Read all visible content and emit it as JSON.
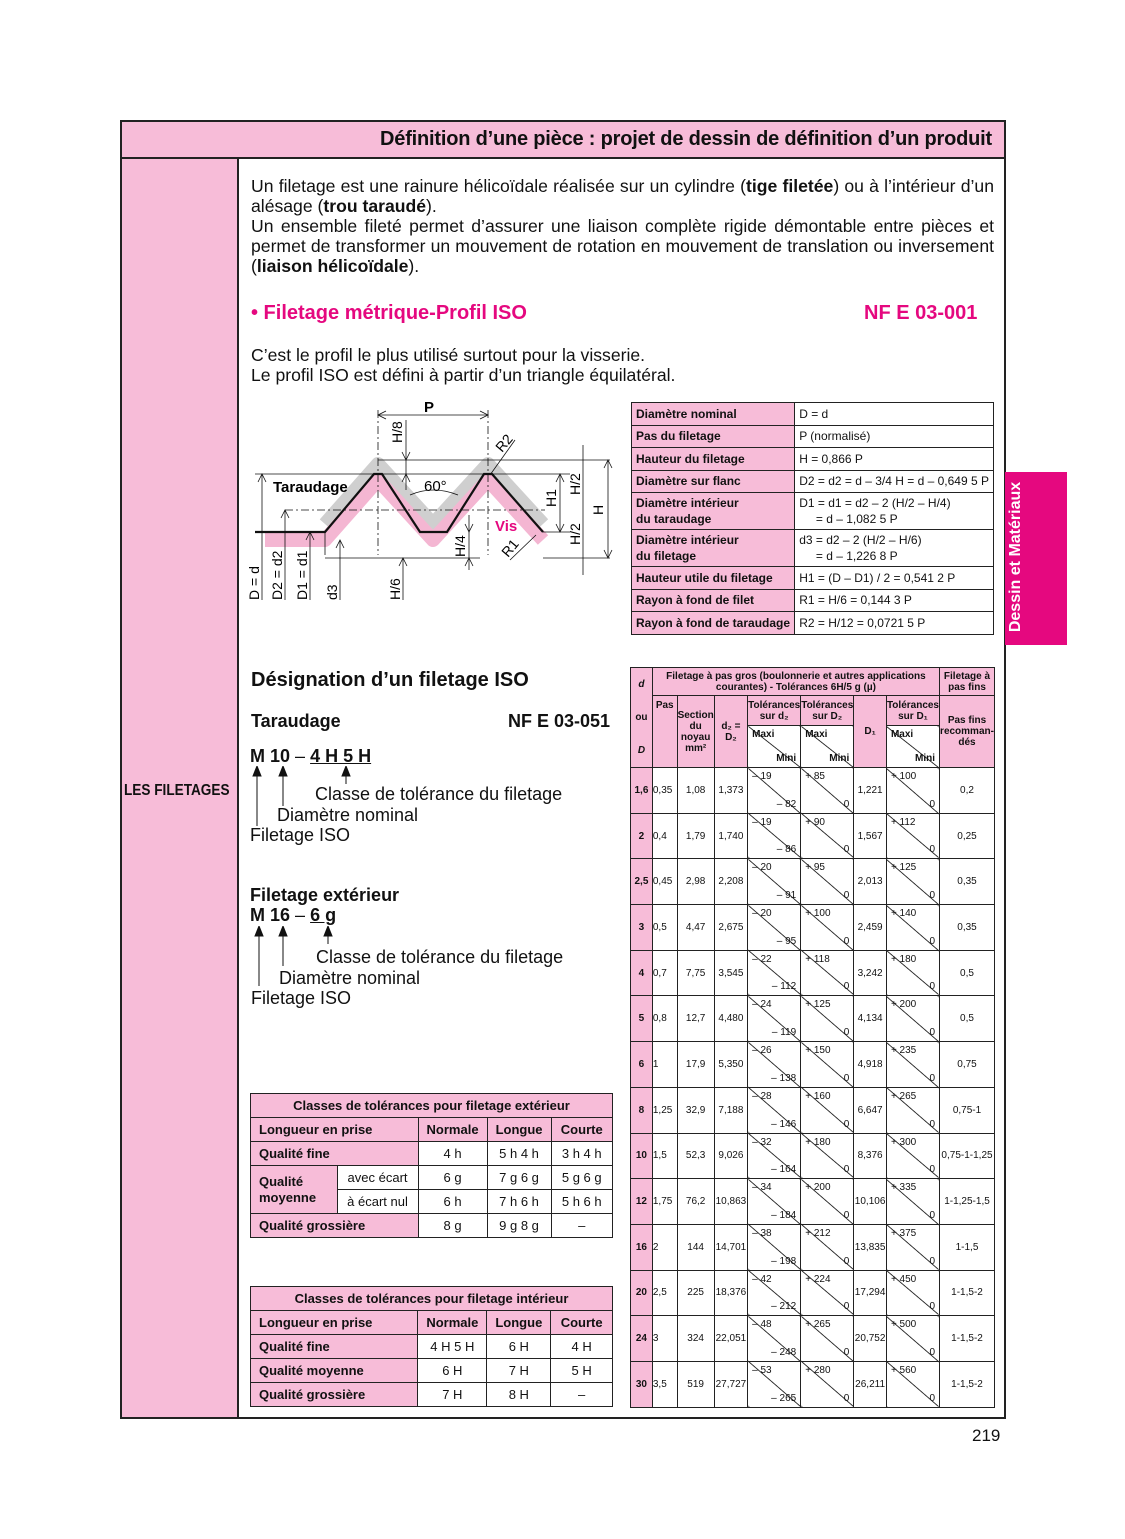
{
  "title": "Définition d’une pièce : projet de dessin de définition d’un produit",
  "left_label": "LES FILETAGES",
  "side_tab": "Dessin et Matériaux",
  "page_number": "219",
  "intro": {
    "p1": [
      "Un filetage est une rainure hélicoïdale réalisée sur un cylindre (",
      "tige filetée",
      ") ou à l’intérieur d’un alésage (",
      "trou taraudé",
      ")."
    ],
    "p2": [
      "Un ensemble fileté permet d’assurer une liaison complète rigide démontable entre pièces et permet de transformer un mouvement de rotation en mouvement de translation ou inversement (",
      "liaison hélicoïdale",
      ")."
    ]
  },
  "section": {
    "title": "• Filetage métrique-Profil ISO",
    "norm": "NF E 03-001",
    "line1": "C’est le profil le plus utilisé surtout pour la visserie.",
    "line2": "Le profil ISO est défini à partir d’un triangle équilatéral."
  },
  "diagram": {
    "P": "P",
    "H8": "H/8",
    "R2": "R2",
    "taraudage": "Taraudage",
    "angle": "60°",
    "vis": "Vis",
    "H1": "H1",
    "H2a": "H/2",
    "H2b": "H/2",
    "H": "H",
    "H4": "H/4",
    "R1": "R1",
    "H6": "H/6",
    "Dd": "D = d",
    "D2": "D2 = d2",
    "D1": "D1 = d1",
    "d3": "d3",
    "colors": {
      "gray": "#cfcfcf",
      "pink": "#f4b6d2",
      "vis": "#e5087f"
    }
  },
  "spec_table": [
    [
      "Diamètre nominal",
      "D = d"
    ],
    [
      "Pas du filetage",
      "P (normalisé)"
    ],
    [
      "Hauteur du filetage",
      "H = 0,866 P"
    ],
    [
      "Diamètre sur flanc",
      "D2 = d2 = d – 3/4 H = d – 0,649 5 P"
    ],
    [
      "Diamètre intérieur\ndu taraudage",
      "D1 = d1 = d2 – 2 (H/2 – H/4)\n     = d – 1,082 5 P"
    ],
    [
      "Diamètre intérieur\ndu filetage",
      "d3 = d2 – 2 (H/2 – H/6)\n     = d – 1,226 8 P"
    ],
    [
      "Hauteur utile du filetage",
      "H1 = (D – D1) / 2 = 0,541 2 P"
    ],
    [
      "Rayon à fond de filet",
      "R1 = H/6 = 0,144 3 P"
    ],
    [
      "Rayon à fond de taraudage",
      "R2 = H/12 = 0,0721 5 P"
    ]
  ],
  "designation": {
    "title": "Désignation d’un filetage ISO",
    "taraudage": "Taraudage",
    "norm": "NF E 03-051",
    "code_a": "M 10",
    "dash": "–",
    "code_b": "4 H 5 H",
    "l1": "Classe de tolérance du filetage",
    "l2": "Diamètre nominal",
    "l3": "Filetage ISO",
    "ext_title": "Filetage extérieur",
    "code2_a": "M 16",
    "code2_b": "6 g"
  },
  "ext_table": {
    "title": "Classes de tolérances pour filetage extérieur",
    "header": [
      "Longueur en prise",
      "Normale",
      "Longue",
      "Courte"
    ],
    "fine": [
      "Qualité fine",
      "4 h",
      "5 h  4 h",
      "3 h  4 h"
    ],
    "moy_label": "Qualité moyenne",
    "moy1": [
      "avec écart",
      "6 g",
      "7 g  6 g",
      "5 g  6 g"
    ],
    "moy2": [
      "à écart nul",
      "6 h",
      "7 h  6 h",
      "5 h  6 h"
    ],
    "gros": [
      "Qualité grossière",
      "8 g",
      "9 g  8 g",
      "–"
    ]
  },
  "int_table": {
    "title": "Classes de tolérances pour filetage intérieur",
    "header": [
      "Longueur en prise",
      "Normale",
      "Longue",
      "Courte"
    ],
    "rows": [
      [
        "Qualité fine",
        "4 H 5 H",
        "6 H",
        "4 H"
      ],
      [
        "Qualité moyenne",
        "6 H",
        "7 H",
        "5 H"
      ],
      [
        "Qualité grossière",
        "7 H",
        "8 H",
        "–"
      ]
    ]
  },
  "big_table": {
    "h_d": "d",
    "h_ou": "ou",
    "h_D": "D",
    "h_group": "Filetage à pas gros (boulonnerie et autres applications courantes) - Tolérances 6H/5 g (µ)",
    "h_fins": "Filetage à pas fins",
    "h_pas": "Pas",
    "h_section": "Section du noyau mm²",
    "h_d2": "d₂ = D₂",
    "h_tol_d2": "Tolérances sur d₂",
    "h_tol_D2": "Tolérances sur D₂",
    "h_D1": "D₁",
    "h_tol_D1": "Tolérances sur D₁",
    "h_pasfins": "Pas fins recomman-dés",
    "maxi": "Maxi",
    "mini": "Mini",
    "rows": [
      [
        "1,6",
        "0,35",
        "1,08",
        "1,373",
        "– 19",
        "– 82",
        "+ 85",
        "0",
        "1,221",
        "+ 100",
        "0",
        "0,2"
      ],
      [
        "2",
        "0,4",
        "1,79",
        "1,740",
        "– 19",
        "– 86",
        "+ 90",
        "0",
        "1,567",
        "+ 112",
        "0",
        "0,25"
      ],
      [
        "2,5",
        "0,45",
        "2,98",
        "2,208",
        "– 20",
        "– 91",
        "+ 95",
        "0",
        "2,013",
        "+ 125",
        "0",
        "0,35"
      ],
      [
        "3",
        "0,5",
        "4,47",
        "2,675",
        "– 20",
        "– 95",
        "+ 100",
        "0",
        "2,459",
        "+ 140",
        "0",
        "0,35"
      ],
      [
        "4",
        "0,7",
        "7,75",
        "3,545",
        "– 22",
        "– 112",
        "+ 118",
        "0",
        "3,242",
        "+ 180",
        "0",
        "0,5"
      ],
      [
        "5",
        "0,8",
        "12,7",
        "4,480",
        "– 24",
        "– 119",
        "+ 125",
        "0",
        "4,134",
        "+ 200",
        "0",
        "0,5"
      ],
      [
        "6",
        "1",
        "17,9",
        "5,350",
        "– 26",
        "– 138",
        "+ 150",
        "0",
        "4,918",
        "+ 235",
        "0",
        "0,75"
      ],
      [
        "8",
        "1,25",
        "32,9",
        "7,188",
        "– 28",
        "– 146",
        "+ 160",
        "0",
        "6,647",
        "+ 265",
        "0",
        "0,75-1"
      ],
      [
        "10",
        "1,5",
        "52,3",
        "9,026",
        "– 32",
        "– 164",
        "+ 180",
        "0",
        "8,376",
        "+ 300",
        "0",
        "0,75-1-1,25"
      ],
      [
        "12",
        "1,75",
        "76,2",
        "10,863",
        "– 34",
        "– 184",
        "+ 200",
        "0",
        "10,106",
        "+ 335",
        "0",
        "1-1,25-1,5"
      ],
      [
        "16",
        "2",
        "144",
        "14,701",
        "– 38",
        "– 198",
        "+ 212",
        "0",
        "13,835",
        "+ 375",
        "0",
        "1-1,5"
      ],
      [
        "20",
        "2,5",
        "225",
        "18,376",
        "– 42",
        "– 212",
        "+ 224",
        "0",
        "17,294",
        "+ 450",
        "0",
        "1-1,5-2"
      ],
      [
        "24",
        "3",
        "324",
        "22,051",
        "– 48",
        "– 248",
        "+ 265",
        "0",
        "20,752",
        "+ 500",
        "0",
        "1-1,5-2"
      ],
      [
        "30",
        "3,5",
        "519",
        "27,727",
        "– 53",
        "– 265",
        "+ 280",
        "0",
        "26,211",
        "+ 560",
        "0",
        "1-1,5-2"
      ]
    ]
  }
}
